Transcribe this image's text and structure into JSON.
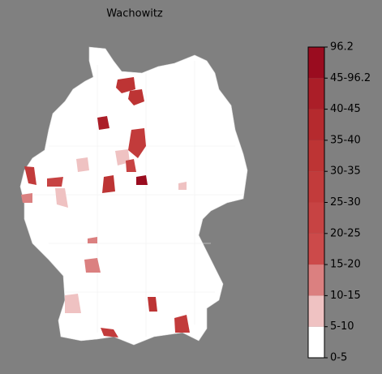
{
  "title": "Wachowitz",
  "colorbar": {
    "labels": [
      "0-5",
      "5-10",
      "10-15",
      "15-20",
      "20-25",
      "25-30",
      "30-35",
      "35-40",
      "40-45",
      "45-96.2",
      "96.2"
    ],
    "colors": [
      "#ffffff",
      "#efc2c2",
      "#db8080",
      "#cc4a4a",
      "#c74343",
      "#c23b3b",
      "#bd3434",
      "#b52a2e",
      "#ab1e28",
      "#9a0c1f"
    ]
  }
}
